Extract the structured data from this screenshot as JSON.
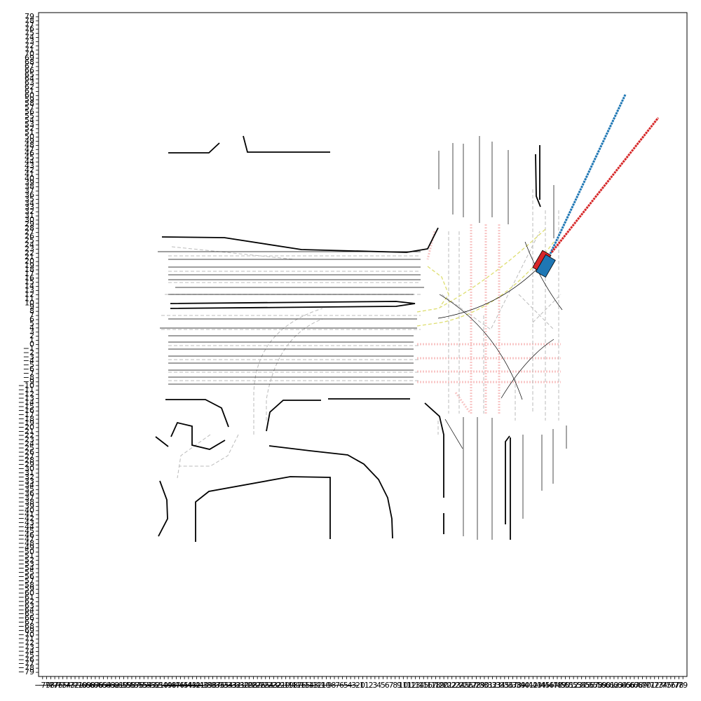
{
  "chart_data": {
    "type": "map",
    "xlim": [
      -80,
      80
    ],
    "ylim": [
      -80,
      80
    ],
    "xticks": [
      {
        "value": -79,
        "label": "−79"
      },
      {
        "value": -78,
        "label": "−78"
      },
      {
        "value": -77,
        "label": "−77"
      },
      {
        "value": -76,
        "label": "−76"
      },
      {
        "value": -75,
        "label": "−75"
      },
      {
        "value": -74,
        "label": "−74"
      },
      {
        "value": -73,
        "label": "−73"
      },
      {
        "value": -72,
        "label": "−72"
      },
      {
        "value": -71,
        "label": "−71"
      },
      {
        "value": -70,
        "label": "−70"
      },
      {
        "value": -69,
        "label": "−69"
      },
      {
        "value": -68,
        "label": "−68"
      },
      {
        "value": -67,
        "label": "−67"
      },
      {
        "value": -66,
        "label": "−66"
      },
      {
        "value": -65,
        "label": "−65"
      },
      {
        "value": -64,
        "label": "−64"
      },
      {
        "value": -63,
        "label": "−63"
      },
      {
        "value": -62,
        "label": "−62"
      },
      {
        "value": -61,
        "label": "−61"
      },
      {
        "value": -60,
        "label": "−60"
      },
      {
        "value": -59,
        "label": "−59"
      },
      {
        "value": -58,
        "label": "−58"
      },
      {
        "value": -57,
        "label": "−57"
      },
      {
        "value": -56,
        "label": "−56"
      },
      {
        "value": -55,
        "label": "−55"
      },
      {
        "value": -54,
        "label": "−54"
      },
      {
        "value": -53,
        "label": "−53"
      },
      {
        "value": -52,
        "label": "−52"
      },
      {
        "value": -51,
        "label": "−51"
      },
      {
        "value": -50,
        "label": "−50"
      },
      {
        "value": -49,
        "label": "−49"
      },
      {
        "value": -48,
        "label": "−48"
      },
      {
        "value": -47,
        "label": "−47"
      },
      {
        "value": -46,
        "label": "−46"
      },
      {
        "value": -45,
        "label": "−45"
      },
      {
        "value": -44,
        "label": "−44"
      },
      {
        "value": -43,
        "label": "−43"
      },
      {
        "value": -42,
        "label": "−42"
      },
      {
        "value": -41,
        "label": "−41"
      },
      {
        "value": -40,
        "label": "−40"
      },
      {
        "value": -39,
        "label": "−39"
      },
      {
        "value": -38,
        "label": "−38"
      },
      {
        "value": -37,
        "label": "−37"
      },
      {
        "value": -36,
        "label": "−36"
      },
      {
        "value": -35,
        "label": "−35"
      },
      {
        "value": -34,
        "label": "−34"
      },
      {
        "value": -33,
        "label": "−33"
      },
      {
        "value": -32,
        "label": "−32"
      },
      {
        "value": -31,
        "label": "−31"
      },
      {
        "value": -30,
        "label": "−30"
      },
      {
        "value": -29,
        "label": "−29"
      },
      {
        "value": -28,
        "label": "−28"
      },
      {
        "value": -27,
        "label": "−27"
      },
      {
        "value": -26,
        "label": "−26"
      },
      {
        "value": -25,
        "label": "−25"
      },
      {
        "value": -24,
        "label": "−24"
      },
      {
        "value": -23,
        "label": "−23"
      },
      {
        "value": -22,
        "label": "−22"
      },
      {
        "value": -21,
        "label": "−21"
      },
      {
        "value": -20,
        "label": "−20"
      },
      {
        "value": -19,
        "label": "−19"
      },
      {
        "value": -18,
        "label": "−18"
      },
      {
        "value": -17,
        "label": "−17"
      },
      {
        "value": -16,
        "label": "−16"
      },
      {
        "value": -15,
        "label": "−15"
      },
      {
        "value": -14,
        "label": "−14"
      },
      {
        "value": -13,
        "label": "−13"
      },
      {
        "value": -12,
        "label": "−12"
      },
      {
        "value": -11,
        "label": "−11"
      },
      {
        "value": -10,
        "label": "−10"
      },
      {
        "value": -9,
        "label": "−9"
      },
      {
        "value": -8,
        "label": "−8"
      },
      {
        "value": -7,
        "label": "−7"
      },
      {
        "value": -6,
        "label": "−6"
      },
      {
        "value": -5,
        "label": "−5"
      },
      {
        "value": -4,
        "label": "−4"
      },
      {
        "value": -3,
        "label": "−3"
      },
      {
        "value": -2,
        "label": "−2"
      },
      {
        "value": -1,
        "label": "−1"
      },
      0,
      1,
      2,
      3,
      4,
      5,
      6,
      7,
      8,
      9,
      10,
      11,
      12,
      13,
      14,
      15,
      16,
      17,
      18,
      19,
      20,
      21,
      22,
      23,
      24,
      25,
      26,
      27,
      28,
      29,
      30,
      31,
      32,
      33,
      34,
      35,
      36,
      37,
      38,
      39,
      40,
      41,
      42,
      43,
      44,
      45,
      46,
      47,
      48,
      49,
      50,
      51,
      52,
      53,
      54,
      55,
      56,
      57,
      58,
      59,
      60,
      61,
      62,
      63,
      64,
      65,
      66,
      67,
      68,
      69,
      70,
      71,
      72,
      73,
      74,
      75,
      76,
      77,
      78,
      79
    ],
    "yticks": [
      {
        "value": -79,
        "label": "−79"
      },
      {
        "value": -78,
        "label": "−78"
      },
      {
        "value": -77,
        "label": "−77"
      },
      {
        "value": -76,
        "label": "−76"
      },
      {
        "value": -75,
        "label": "−75"
      },
      {
        "value": -74,
        "label": "−74"
      },
      {
        "value": -73,
        "label": "−73"
      },
      {
        "value": -72,
        "label": "−72"
      },
      {
        "value": -71,
        "label": "−71"
      },
      {
        "value": -70,
        "label": "−70"
      },
      {
        "value": -69,
        "label": "−69"
      },
      {
        "value": -68,
        "label": "−68"
      },
      {
        "value": -67,
        "label": "−67"
      },
      {
        "value": -66,
        "label": "−66"
      },
      {
        "value": -65,
        "label": "−65"
      },
      {
        "value": -64,
        "label": "−64"
      },
      {
        "value": -63,
        "label": "−63"
      },
      {
        "value": -62,
        "label": "−62"
      },
      {
        "value": -61,
        "label": "−61"
      },
      {
        "value": -60,
        "label": "−60"
      },
      {
        "value": -59,
        "label": "−59"
      },
      {
        "value": -58,
        "label": "−58"
      },
      {
        "value": -57,
        "label": "−57"
      },
      {
        "value": -56,
        "label": "−56"
      },
      {
        "value": -55,
        "label": "−55"
      },
      {
        "value": -54,
        "label": "−54"
      },
      {
        "value": -53,
        "label": "−53"
      },
      {
        "value": -52,
        "label": "−52"
      },
      {
        "value": -51,
        "label": "−51"
      },
      {
        "value": -50,
        "label": "−50"
      },
      {
        "value": -49,
        "label": "−49"
      },
      {
        "value": -48,
        "label": "−48"
      },
      {
        "value": -47,
        "label": "−47"
      },
      {
        "value": -46,
        "label": "−46"
      },
      {
        "value": -45,
        "label": "−45"
      },
      {
        "value": -44,
        "label": "−44"
      },
      {
        "value": -43,
        "label": "−43"
      },
      {
        "value": -42,
        "label": "−42"
      },
      {
        "value": -41,
        "label": "−41"
      },
      {
        "value": -40,
        "label": "−40"
      },
      {
        "value": -39,
        "label": "−39"
      },
      {
        "value": -38,
        "label": "−38"
      },
      {
        "value": -37,
        "label": "−37"
      },
      {
        "value": -36,
        "label": "−36"
      },
      {
        "value": -35,
        "label": "−35"
      },
      {
        "value": -34,
        "label": "−34"
      },
      {
        "value": -33,
        "label": "−33"
      },
      {
        "value": -32,
        "label": "−32"
      },
      {
        "value": -31,
        "label": "−31"
      },
      {
        "value": -30,
        "label": "−30"
      },
      {
        "value": -29,
        "label": "−29"
      },
      {
        "value": -28,
        "label": "−28"
      },
      {
        "value": -27,
        "label": "−27"
      },
      {
        "value": -26,
        "label": "−26"
      },
      {
        "value": -25,
        "label": "−25"
      },
      {
        "value": -24,
        "label": "−24"
      },
      {
        "value": -23,
        "label": "−23"
      },
      {
        "value": -22,
        "label": "−22"
      },
      {
        "value": -21,
        "label": "−21"
      },
      {
        "value": -20,
        "label": "−20"
      },
      {
        "value": -19,
        "label": "−19"
      },
      {
        "value": -18,
        "label": "−18"
      },
      {
        "value": -17,
        "label": "−17"
      },
      {
        "value": -16,
        "label": "−16"
      },
      {
        "value": -15,
        "label": "−15"
      },
      {
        "value": -14,
        "label": "−14"
      },
      {
        "value": -13,
        "label": "−13"
      },
      {
        "value": -12,
        "label": "−12"
      },
      {
        "value": -11,
        "label": "−11"
      },
      {
        "value": -10,
        "label": "−10"
      },
      {
        "value": -9,
        "label": "−9"
      },
      {
        "value": -8,
        "label": "−8"
      },
      {
        "value": -7,
        "label": "−7"
      },
      {
        "value": -6,
        "label": "−6"
      },
      {
        "value": -5,
        "label": "−5"
      },
      {
        "value": -4,
        "label": "−4"
      },
      {
        "value": -3,
        "label": "−3"
      },
      {
        "value": -2,
        "label": "−2"
      },
      {
        "value": -1,
        "label": "−1"
      },
      0,
      1,
      2,
      3,
      4,
      5,
      6,
      7,
      8,
      9,
      10,
      11,
      12,
      13,
      14,
      15,
      16,
      17,
      18,
      19,
      20,
      21,
      22,
      23,
      24,
      25,
      26,
      27,
      28,
      29,
      30,
      31,
      32,
      33,
      34,
      35,
      36,
      37,
      38,
      39,
      40,
      41,
      42,
      43,
      44,
      45,
      46,
      47,
      48,
      49,
      50,
      51,
      52,
      53,
      54,
      55,
      56,
      57,
      58,
      59,
      60,
      61,
      62,
      63,
      64,
      65,
      66,
      67,
      68,
      69,
      70,
      71,
      72,
      73,
      74,
      75,
      76,
      77,
      78,
      79
    ]
  }
}
